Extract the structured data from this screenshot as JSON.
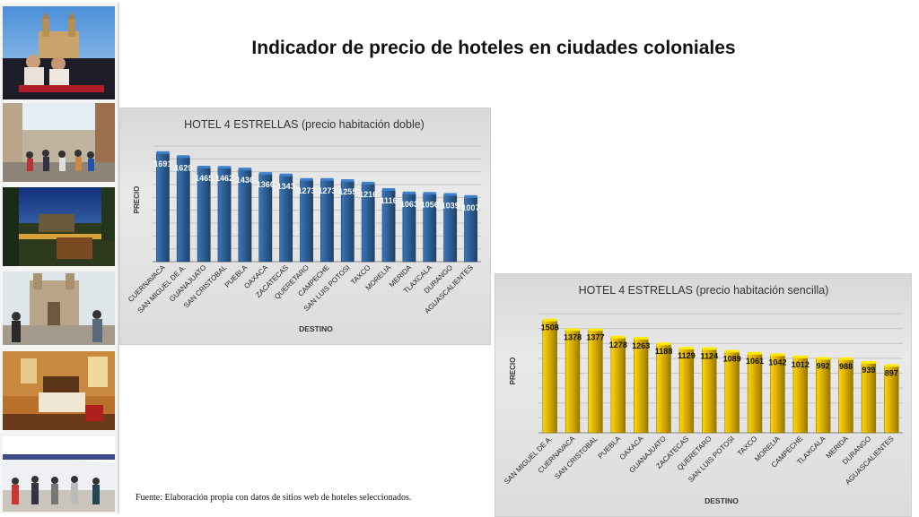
{
  "page": {
    "title": "Indicador de precio de hoteles en ciudades coloniales",
    "source": "Fuente: Elaboración propia con datos de sitios web de hoteles seleccionados."
  },
  "photos": [
    {
      "name": "photo-cathedral-couple"
    },
    {
      "name": "photo-street-crowd"
    },
    {
      "name": "photo-terrace-night"
    },
    {
      "name": "photo-church-tourists"
    },
    {
      "name": "photo-hotel-room"
    },
    {
      "name": "photo-mall-shoppers"
    }
  ],
  "chart_data": [
    {
      "type": "bar",
      "title": "HOTEL 4 ESTRELLAS (precio habitación doble)",
      "xlabel": "DESTINO",
      "ylabel": "PRECIO",
      "ylim": [
        0,
        1800
      ],
      "grid": true,
      "legend": "none",
      "bar_color": "#2e5f96",
      "label_color": "#ffffff",
      "categories": [
        "CUERNAVACA",
        "SAN MIGUEL DE A.",
        "GUANAJUATO",
        "SAN CRISTOBAL",
        "PUEBLA",
        "OAXACA",
        "ZACATECAS",
        "QUERETARO",
        "CAMPECHE",
        "SAN LUIS POTOSI",
        "TAXCO",
        "MORELIA",
        "MERIDA",
        "TLAXCALA",
        "DURANGO",
        "AGUASCALIENTES"
      ],
      "values": [
        1691,
        1629,
        1465,
        1462,
        1436,
        1366,
        1343,
        1273,
        1273,
        1255,
        1216,
        1116,
        1063,
        1056,
        1039,
        1007
      ],
      "labels": [
        "1691",
        "1629",
        "1465",
        "1462",
        "1436",
        "1366",
        "1343",
        "1273",
        "1273",
        "1255",
        "1216",
        "1116",
        "1063",
        "1056",
        "1039",
        "1007"
      ]
    },
    {
      "type": "bar",
      "title": "HOTEL 4 ESTRELLAS (precio habitación sencilla)",
      "xlabel": "DESTINO",
      "ylabel": "PRECIO",
      "ylim": [
        0,
        1600
      ],
      "grid": true,
      "legend": "none",
      "bar_color": "#d9ad00",
      "label_color": "#111111",
      "categories": [
        "SAN MIGUEL DE A.",
        "CUERNAVACA",
        "SAN CRISTOBAL",
        "PUEBLA",
        "OAXACA",
        "GUANAJUATO",
        "ZACATECAS",
        "QUERETARO",
        "SAN LUIS POTOSI",
        "TAXCO",
        "MORELIA",
        "CAMPECHE",
        "TLAXCALA",
        "MERIDA",
        "DURANGO",
        "AGUASCALIENTES"
      ],
      "values": [
        1508,
        1378,
        1377,
        1278,
        1263,
        1188,
        1129,
        1124,
        1089,
        1061,
        1042,
        1012,
        992,
        988,
        939,
        897
      ],
      "labels": [
        "1508",
        "1378",
        "1377",
        "1278",
        "1263",
        "1188",
        "1129",
        "1124",
        "1089",
        "1061",
        "1042",
        "1012",
        "992",
        "988",
        "939",
        "897"
      ]
    }
  ]
}
